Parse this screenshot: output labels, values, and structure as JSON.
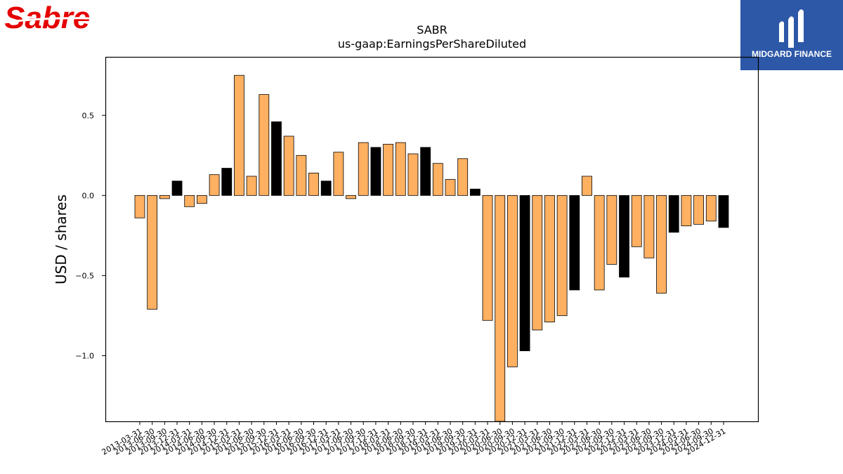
{
  "brand": {
    "left_logo_text": "Sabre",
    "right_logo_text": "MIDGARD FINANCE"
  },
  "colors": {
    "bar_normal": "#ffb061",
    "bar_highlight": "#000000",
    "bar_edge": "#000000",
    "midgard_bg": "#2d58a8",
    "sabre_red": "#e50000"
  },
  "chart_data": {
    "type": "bar",
    "title": "SABR",
    "subtitle": "us-gaap:EarningsPerShareDiluted",
    "xlabel": "",
    "ylabel": "USD / shares",
    "ylim": [
      -1.41,
      0.865
    ],
    "yticks": [
      0.5,
      0.0,
      -0.5,
      -1.0
    ],
    "ytick_labels": [
      "0.5",
      "0.0",
      "−0.5",
      "−1.0"
    ],
    "grid": false,
    "categories": [
      "2013-03-31",
      "2013-06-30",
      "2013-09-30",
      "2013-12-31",
      "2014-03-31",
      "2014-06-30",
      "2014-09-30",
      "2014-12-31",
      "2015-03-31",
      "2015-06-30",
      "2015-09-30",
      "2015-12-31",
      "2016-03-31",
      "2016-06-30",
      "2016-09-30",
      "2016-12-31",
      "2017-03-31",
      "2017-06-30",
      "2017-09-30",
      "2017-12-31",
      "2018-03-31",
      "2018-06-30",
      "2018-09-30",
      "2018-12-31",
      "2019-03-31",
      "2019-06-30",
      "2019-09-30",
      "2019-12-31",
      "2020-03-31",
      "2020-06-30",
      "2020-09-30",
      "2020-12-31",
      "2021-03-31",
      "2021-06-30",
      "2021-09-30",
      "2021-12-31",
      "2022-03-31",
      "2022-06-30",
      "2022-09-30",
      "2022-12-31",
      "2023-03-31",
      "2023-06-30",
      "2023-09-30",
      "2023-12-31",
      "2024-03-31",
      "2024-06-30",
      "2024-09-30",
      "2024-12-31"
    ],
    "values": [
      -0.14,
      -0.71,
      -0.02,
      0.09,
      -0.07,
      -0.05,
      0.13,
      0.17,
      0.75,
      0.12,
      0.63,
      0.46,
      0.37,
      0.25,
      0.14,
      0.09,
      0.27,
      -0.02,
      0.33,
      0.3,
      0.32,
      0.33,
      0.26,
      0.3,
      0.2,
      0.1,
      0.23,
      0.04,
      -0.78,
      -1.41,
      -1.07,
      -0.97,
      -0.84,
      -0.79,
      -0.75,
      -0.59,
      0.12,
      -0.59,
      -0.43,
      -0.51,
      -0.32,
      -0.39,
      -0.61,
      -0.23,
      -0.19,
      -0.18,
      -0.16,
      -0.2
    ],
    "highlight": [
      false,
      false,
      false,
      true,
      false,
      false,
      false,
      true,
      false,
      false,
      false,
      true,
      false,
      false,
      false,
      true,
      false,
      false,
      false,
      true,
      false,
      false,
      false,
      true,
      false,
      false,
      false,
      true,
      false,
      false,
      false,
      true,
      false,
      false,
      false,
      true,
      false,
      false,
      false,
      true,
      false,
      false,
      false,
      true,
      false,
      false,
      false,
      true
    ]
  }
}
